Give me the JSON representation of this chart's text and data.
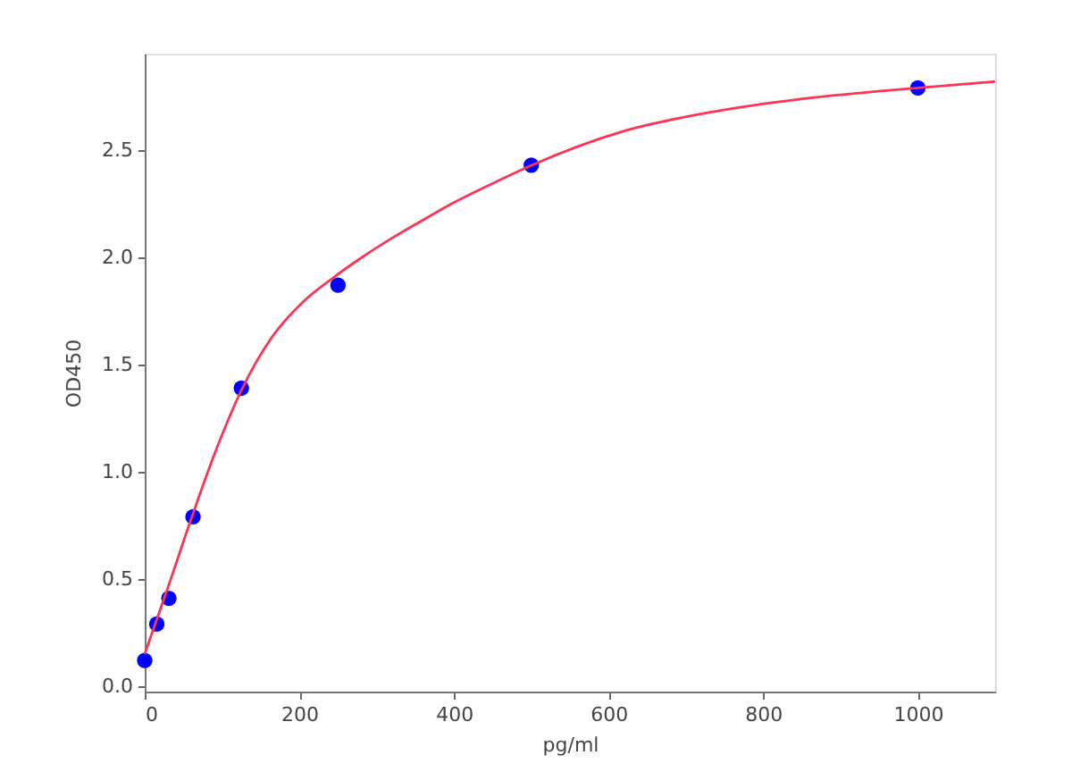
{
  "chart_data": {
    "type": "scatter",
    "xlabel": "pg/ml",
    "ylabel": "OD450",
    "xlim": [
      0,
      1100
    ],
    "ylim": [
      -0.025,
      2.95
    ],
    "xticks": [
      0,
      200,
      400,
      600,
      800,
      1000
    ],
    "yticks": [
      {
        "value": 0,
        "label": "0.0"
      },
      0.5,
      {
        "value": 1,
        "label": "1.0"
      },
      1.5,
      {
        "value": 2,
        "label": "2.0"
      },
      2.5
    ],
    "grid": false,
    "series": [
      {
        "color": "#0000ff",
        "marker": "circle",
        "x": [
          0,
          15.6,
          31.25,
          62.5,
          125,
          250,
          500,
          1000
        ],
        "values": [
          0.12,
          0.29,
          0.41,
          0.79,
          1.39,
          1.87,
          2.43,
          2.79
        ]
      },
      {
        "type": "line",
        "color": "#ff3355",
        "line_style": "solid",
        "x": [
          0,
          29,
          62,
          91,
          125,
          165,
          204,
          242,
          281,
          320,
          358,
          397,
          459,
          501,
          621,
          737,
          853,
          1000,
          1100
        ],
        "values": [
          0.15,
          0.45,
          0.8,
          1.09,
          1.38,
          1.63,
          1.79,
          1.9,
          2.0,
          2.09,
          2.17,
          2.25,
          2.36,
          2.43,
          2.59,
          2.68,
          2.74,
          2.79,
          2.82
        ]
      }
    ]
  }
}
